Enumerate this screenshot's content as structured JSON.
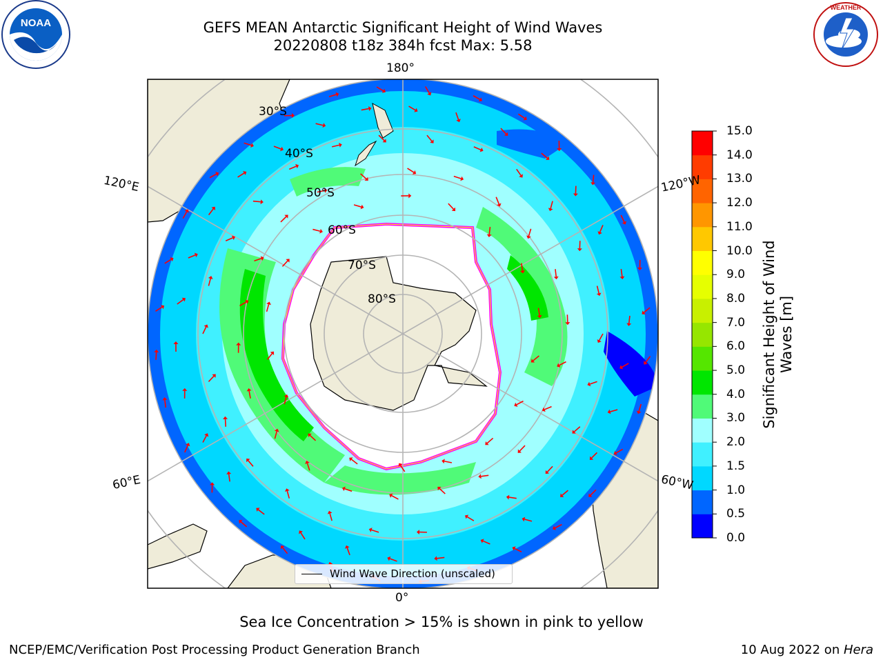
{
  "header": {
    "title_line1": "GEFS MEAN Antarctic Significant Height of Wind Waves",
    "title_line2": "20220808 t18z 384h fcst   Max: 5.58"
  },
  "logos": {
    "left": "NOAA",
    "right": "NATIONAL WEATHER SERVICE"
  },
  "map": {
    "projection": "south-polar-stereographic",
    "longitude_labels": [
      "180°",
      "120°E",
      "120°W",
      "60°E",
      "60°W",
      "0°"
    ],
    "latitude_labels": [
      "30°S",
      "40°S",
      "50°S",
      "60°S",
      "70°S",
      "80°S"
    ],
    "legend_label": "Wind Wave Direction (unscaled)",
    "arrow_color": "#ff0000",
    "land_color": "#efecd9",
    "ice_edge_colors": [
      "#ff00ff",
      "#ffff00"
    ]
  },
  "colorbar": {
    "label": "Significant Height of Wind\nWaves [m]",
    "ticks": [
      "0.0",
      "0.5",
      "1.0",
      "1.5",
      "2.0",
      "3.0",
      "4.0",
      "5.0",
      "6.0",
      "7.0",
      "8.0",
      "9.0",
      "10.0",
      "11.0",
      "12.0",
      "13.0",
      "14.0",
      "15.0"
    ],
    "colors": [
      "#0000ff",
      "#0066ff",
      "#00d8ff",
      "#40f0ff",
      "#a0ffff",
      "#50fa78",
      "#00e600",
      "#55e600",
      "#96e600",
      "#c8f000",
      "#e6ff00",
      "#ffff00",
      "#ffc800",
      "#ff9600",
      "#ff6400",
      "#ff3c00",
      "#ff0000"
    ]
  },
  "footer": {
    "note": "Sea Ice Concentration > 15% is shown in pink to yellow",
    "left": "NCEP/EMC/Verification Post Processing Product Generation Branch",
    "right_date": "10 Aug 2022 on ",
    "right_machine": "Hera"
  }
}
